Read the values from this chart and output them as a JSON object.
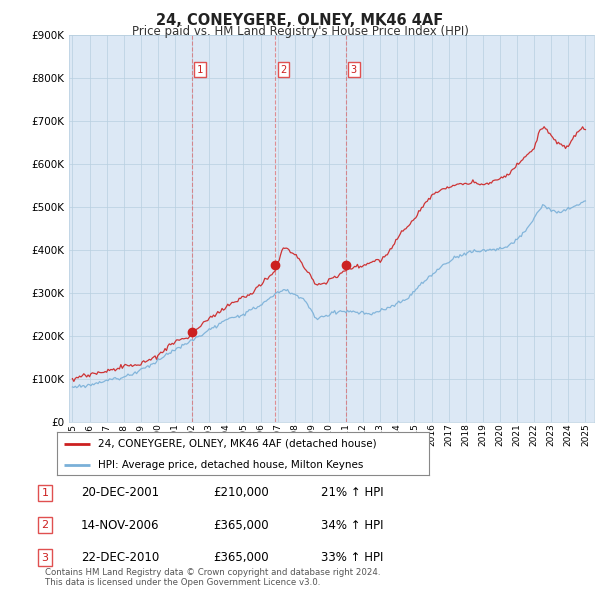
{
  "title": "24, CONEYGERE, OLNEY, MK46 4AF",
  "subtitle": "Price paid vs. HM Land Registry's House Price Index (HPI)",
  "ylim": [
    0,
    900000
  ],
  "yticks": [
    0,
    100000,
    200000,
    300000,
    400000,
    500000,
    600000,
    700000,
    800000,
    900000
  ],
  "sale_year_nums": [
    2001.97,
    2006.87,
    2010.97
  ],
  "sale_prices": [
    210000,
    365000,
    365000
  ],
  "sale_labels": [
    "1",
    "2",
    "3"
  ],
  "legend_entries": [
    "24, CONEYGERE, OLNEY, MK46 4AF (detached house)",
    "HPI: Average price, detached house, Milton Keynes"
  ],
  "table_rows": [
    [
      "1",
      "20-DEC-2001",
      "£210,000",
      "21% ↑ HPI"
    ],
    [
      "2",
      "14-NOV-2006",
      "£365,000",
      "34% ↑ HPI"
    ],
    [
      "3",
      "22-DEC-2010",
      "£365,000",
      "33% ↑ HPI"
    ]
  ],
  "footnote": "Contains HM Land Registry data © Crown copyright and database right 2024.\nThis data is licensed under the Open Government Licence v3.0.",
  "line_color_red": "#cc2020",
  "line_color_blue": "#7ab0d8",
  "vline_color": "#e05050",
  "chart_bg": "#dce8f5",
  "background_color": "#ffffff",
  "grid_color": "#b8cfe0"
}
